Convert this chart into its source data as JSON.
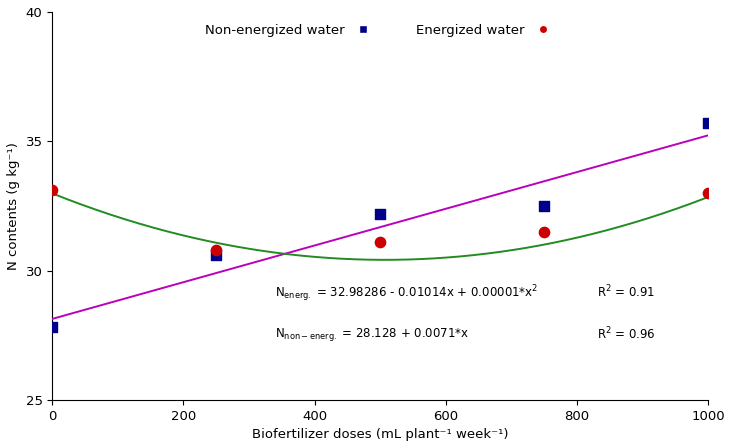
{
  "non_energ_x": [
    0,
    250,
    500,
    750,
    1000
  ],
  "non_energ_y": [
    27.8,
    30.6,
    32.2,
    32.5,
    35.7
  ],
  "energ_x": [
    0,
    250,
    500,
    750,
    1000
  ],
  "energ_y": [
    33.1,
    30.8,
    31.1,
    31.5,
    33.0
  ],
  "non_energ_color": "#00008B",
  "energ_color": "#CC0000",
  "line_non_energ_color": "#BB00BB",
  "line_energ_color": "#228B22",
  "non_energ_eq_a": 28.128,
  "non_energ_eq_b": 0.0071,
  "energ_eq_a": 32.98286,
  "energ_eq_b": -0.01014,
  "energ_eq_c": 1e-05,
  "r2_energ": "0.91",
  "r2_non_energ": "0.96",
  "xlabel": "Biofertilizer doses (mL plant⁻¹ week⁻¹)",
  "ylabel": "N contents (g kg⁻¹)",
  "xlim": [
    0,
    1000
  ],
  "ylim": [
    25,
    40
  ],
  "xticks": [
    0,
    200,
    400,
    600,
    800,
    1000
  ],
  "yticks": [
    25,
    30,
    35,
    40
  ],
  "legend_non_energ": "Non-energized water",
  "legend_energ": "Energized water",
  "marker_size": 55
}
